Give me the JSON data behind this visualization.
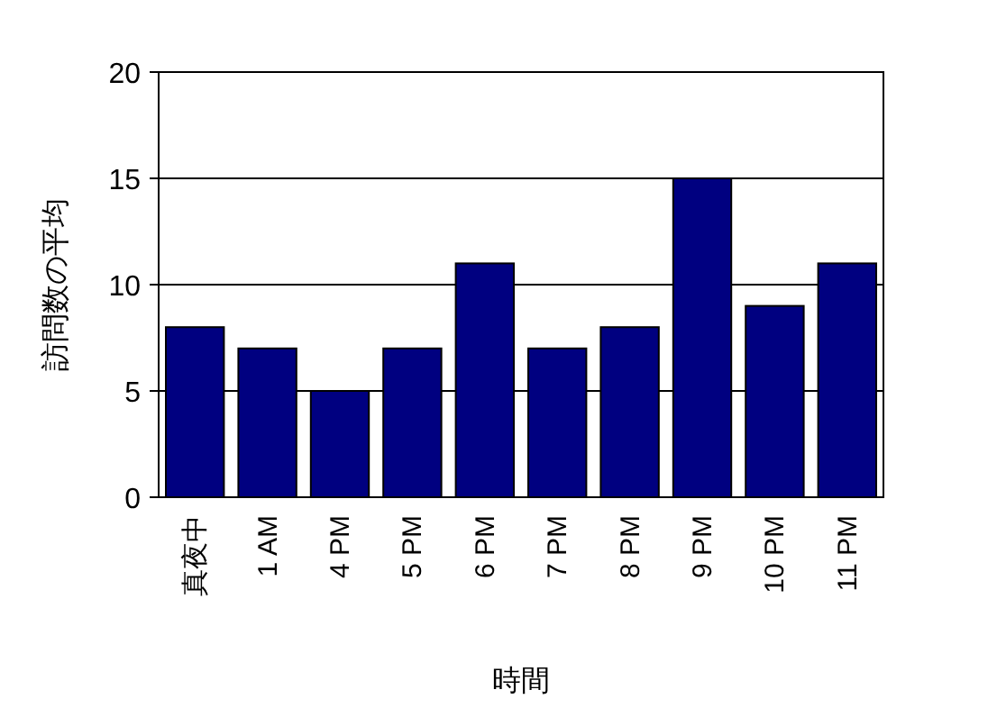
{
  "chart_data": {
    "type": "bar",
    "xlabel": "時間",
    "ylabel": "訪問数の平均",
    "categories": [
      "真夜中",
      "1 AM",
      "4 PM",
      "5 PM",
      "6 PM",
      "7 PM",
      "8 PM",
      "9 PM",
      "10 PM",
      "11 PM"
    ],
    "values": [
      8,
      7,
      5,
      7,
      11,
      7,
      8,
      15,
      9,
      11
    ],
    "color": "#000080",
    "ylim": [
      0,
      20
    ],
    "yticks": [
      0,
      5,
      10,
      15,
      20
    ],
    "grid": "y"
  }
}
